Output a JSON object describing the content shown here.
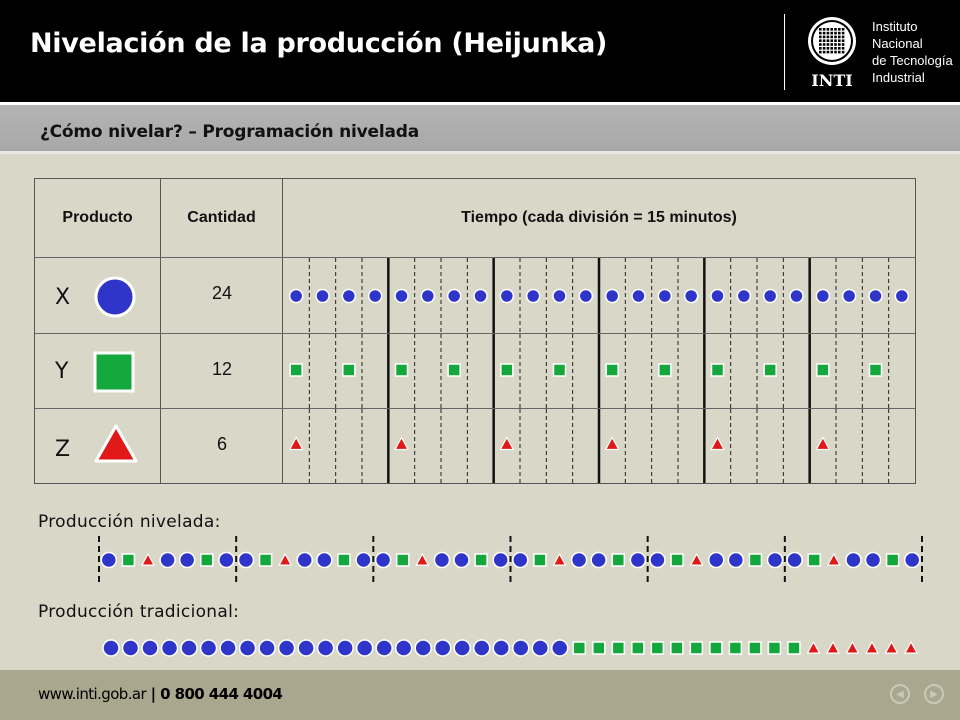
{
  "header": {
    "title": "Nivelación de la producción (Heijunka)",
    "logo": {
      "name": "INTI",
      "lines": [
        "Instituto",
        "Nacional",
        "de Tecnología",
        "Industrial"
      ]
    }
  },
  "subheader": {
    "title": "¿Cómo nivelar? – Programación nivelada"
  },
  "table": {
    "headers": [
      "Producto",
      "Cantidad",
      "Tiempo (cada división = 15 minutos)"
    ],
    "rows": [
      {
        "product": "X",
        "shape": "circle",
        "quantity": "24"
      },
      {
        "product": "Y",
        "shape": "square",
        "quantity": "12"
      },
      {
        "product": "Z",
        "shape": "triangle",
        "quantity": "6"
      }
    ],
    "divisions": 24
  },
  "leveled": {
    "label": "Producción nivelada:",
    "pattern": "CSTCCSC",
    "repeats": 6
  },
  "traditional": {
    "label": "Producción tradicional:",
    "counts": {
      "circle": 24,
      "square": 12,
      "triangle": 6
    }
  },
  "footer": {
    "site": "www.inti.gob.ar",
    "separator": " | ",
    "phone": "0 800 444 4004",
    "prev_icon": "prev-arrow-icon",
    "next_icon": "next-arrow-icon"
  },
  "colors": {
    "circle": "#2f35c8",
    "square": "#14a83c",
    "triangle": "#e01818",
    "topbar": "#000000",
    "background": "#d9d8c8",
    "footer": "#a9a88f"
  }
}
